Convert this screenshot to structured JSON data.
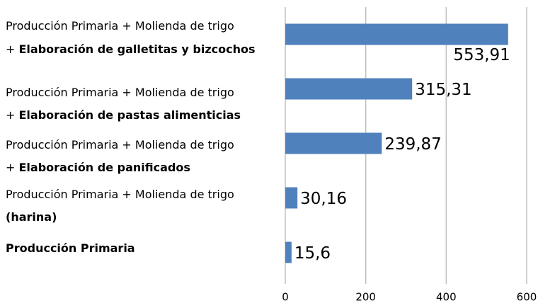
{
  "chart_data": {
    "type": "bar",
    "orientation": "horizontal",
    "categories": [
      [
        [
          {
            "text": "Producción Primaria + Molienda de trigo",
            "bold": false
          }
        ],
        [
          {
            "text": "+ ",
            "bold": false
          },
          {
            "text": "Elaboración de galletitas y bizcochos",
            "bold": true
          }
        ]
      ],
      [
        [
          {
            "text": "Producción Primaria + Molienda de trigo",
            "bold": false
          }
        ],
        [
          {
            "text": "+ ",
            "bold": false
          },
          {
            "text": "Elaboración de pastas alimenticias",
            "bold": true
          }
        ]
      ],
      [
        [
          {
            "text": "Producción Primaria + Molienda de trigo",
            "bold": false
          }
        ],
        [
          {
            "text": "+ ",
            "bold": false
          },
          {
            "text": "Elaboración de panificados",
            "bold": true
          }
        ]
      ],
      [
        [
          {
            "text": "Producción Primaria + Molienda de trigo",
            "bold": false
          }
        ],
        [
          {
            "text": "(harina)",
            "bold": true
          }
        ]
      ],
      [
        [
          {
            "text": "Producción Primaria",
            "bold": true
          }
        ]
      ]
    ],
    "values": [
      553.91,
      315.31,
      239.87,
      30.16,
      15.6
    ],
    "value_labels": [
      "553,91",
      "315,31",
      "239,87",
      "30,16",
      "15,6"
    ],
    "color": "#4f81bd",
    "xlim": [
      0,
      600
    ],
    "xticks": [
      0,
      200,
      400,
      600
    ],
    "grid": true
  }
}
